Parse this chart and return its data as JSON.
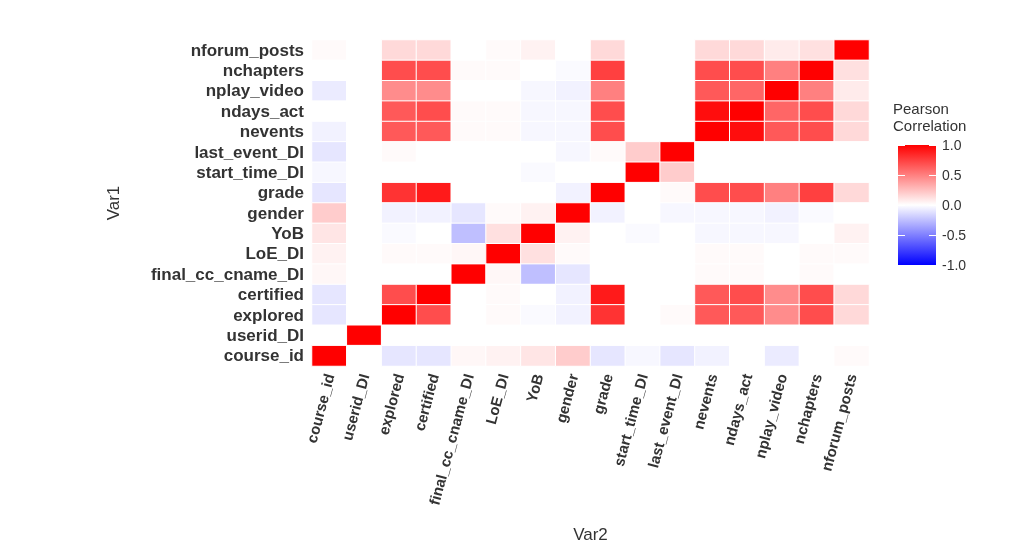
{
  "chart_data": {
    "type": "heatmap",
    "xlabel": "Var2",
    "ylabel": "Var1",
    "legend_title": "Pearson Correlation",
    "categories": [
      "course_id",
      "userid_DI",
      "explored",
      "certified",
      "final_cc_cname_DI",
      "LoE_DI",
      "YoB",
      "gender",
      "grade",
      "start_time_DI",
      "last_event_DI",
      "nevents",
      "ndays_act",
      "nplay_video",
      "nchapters",
      "nforum_posts"
    ],
    "y_categories": [
      "nforum_posts",
      "nchapters",
      "nplay_video",
      "ndays_act",
      "nevents",
      "last_event_DI",
      "start_time_DI",
      "grade",
      "gender",
      "YoB",
      "LoE_DI",
      "final_cc_cname_DI",
      "certified",
      "explored",
      "userid_DI",
      "course_id"
    ],
    "cells": [
      [
        0.02,
        0,
        0.15,
        0.15,
        0,
        0.02,
        0.05,
        0,
        0.15,
        0,
        0,
        0.15,
        0.15,
        0.08,
        0.12,
        1
      ],
      [
        0,
        0,
        0.7,
        0.7,
        0.02,
        0.02,
        0,
        -0.02,
        0.75,
        0,
        0,
        0.7,
        0.7,
        0.5,
        1,
        0.12
      ],
      [
        -0.08,
        0,
        0.45,
        0.45,
        0,
        0,
        -0.03,
        -0.05,
        0.5,
        0,
        0,
        0.65,
        0.6,
        1,
        0.5,
        0.08
      ],
      [
        0,
        0,
        0.65,
        0.7,
        0.02,
        0.02,
        -0.03,
        -0.03,
        0.7,
        0,
        0,
        0.95,
        1,
        0.6,
        0.7,
        0.15
      ],
      [
        -0.05,
        0,
        0.65,
        0.65,
        0.02,
        0.02,
        -0.03,
        -0.03,
        0.7,
        0,
        0,
        1,
        0.95,
        0.65,
        0.7,
        0.15
      ],
      [
        -0.1,
        0,
        0.02,
        0,
        0,
        0,
        0,
        -0.03,
        0.02,
        0.2,
        1,
        0,
        0,
        0,
        0,
        0
      ],
      [
        -0.03,
        0,
        0,
        0,
        0,
        0,
        -0.02,
        0,
        0,
        1,
        0.2,
        0,
        0,
        0,
        0,
        0
      ],
      [
        -0.1,
        0,
        0.8,
        0.9,
        0,
        0,
        0,
        -0.05,
        1,
        0,
        0.02,
        0.7,
        0.7,
        0.5,
        0.75,
        0.15
      ],
      [
        0.2,
        0,
        -0.05,
        -0.05,
        -0.1,
        0.02,
        0.05,
        1,
        -0.05,
        0,
        -0.03,
        -0.03,
        -0.03,
        -0.05,
        -0.02,
        0
      ],
      [
        0.1,
        0,
        -0.02,
        0,
        -0.25,
        0.12,
        1,
        0.05,
        0,
        -0.02,
        0,
        -0.03,
        -0.03,
        -0.03,
        0,
        0.05
      ],
      [
        0.05,
        0,
        0.02,
        0.02,
        0.03,
        1,
        0.12,
        0.02,
        0,
        0,
        0,
        0.02,
        0.02,
        0,
        0.02,
        0.02
      ],
      [
        0.03,
        0,
        0,
        0,
        1,
        0.03,
        -0.25,
        -0.1,
        0,
        0,
        0,
        0.02,
        0.02,
        0,
        0.02,
        0
      ],
      [
        -0.1,
        0,
        0.7,
        1,
        0,
        0.02,
        0,
        -0.05,
        0.9,
        0,
        0,
        0.65,
        0.7,
        0.45,
        0.7,
        0.15
      ],
      [
        -0.1,
        0,
        1,
        0.7,
        0,
        0.02,
        -0.02,
        -0.05,
        0.8,
        0,
        0.02,
        0.65,
        0.65,
        0.45,
        0.7,
        0.15
      ],
      [
        0,
        1,
        0,
        0,
        0,
        0,
        0,
        0,
        0,
        0,
        0,
        0,
        0,
        0,
        0,
        0
      ],
      [
        1,
        0,
        -0.1,
        -0.1,
        0.03,
        0.05,
        0.1,
        0.2,
        -0.1,
        -0.03,
        -0.1,
        -0.05,
        0,
        -0.08,
        0,
        0.02
      ]
    ],
    "clim": [
      -1,
      1
    ],
    "cticks": [
      {
        "value": -1,
        "label": "-1.0"
      },
      {
        "value": -0.5,
        "label": "-0.5"
      },
      {
        "value": 0,
        "label": "0.0"
      },
      {
        "value": 0.5,
        "label": "0.5"
      },
      {
        "value": 1,
        "label": "1.0"
      }
    ]
  }
}
